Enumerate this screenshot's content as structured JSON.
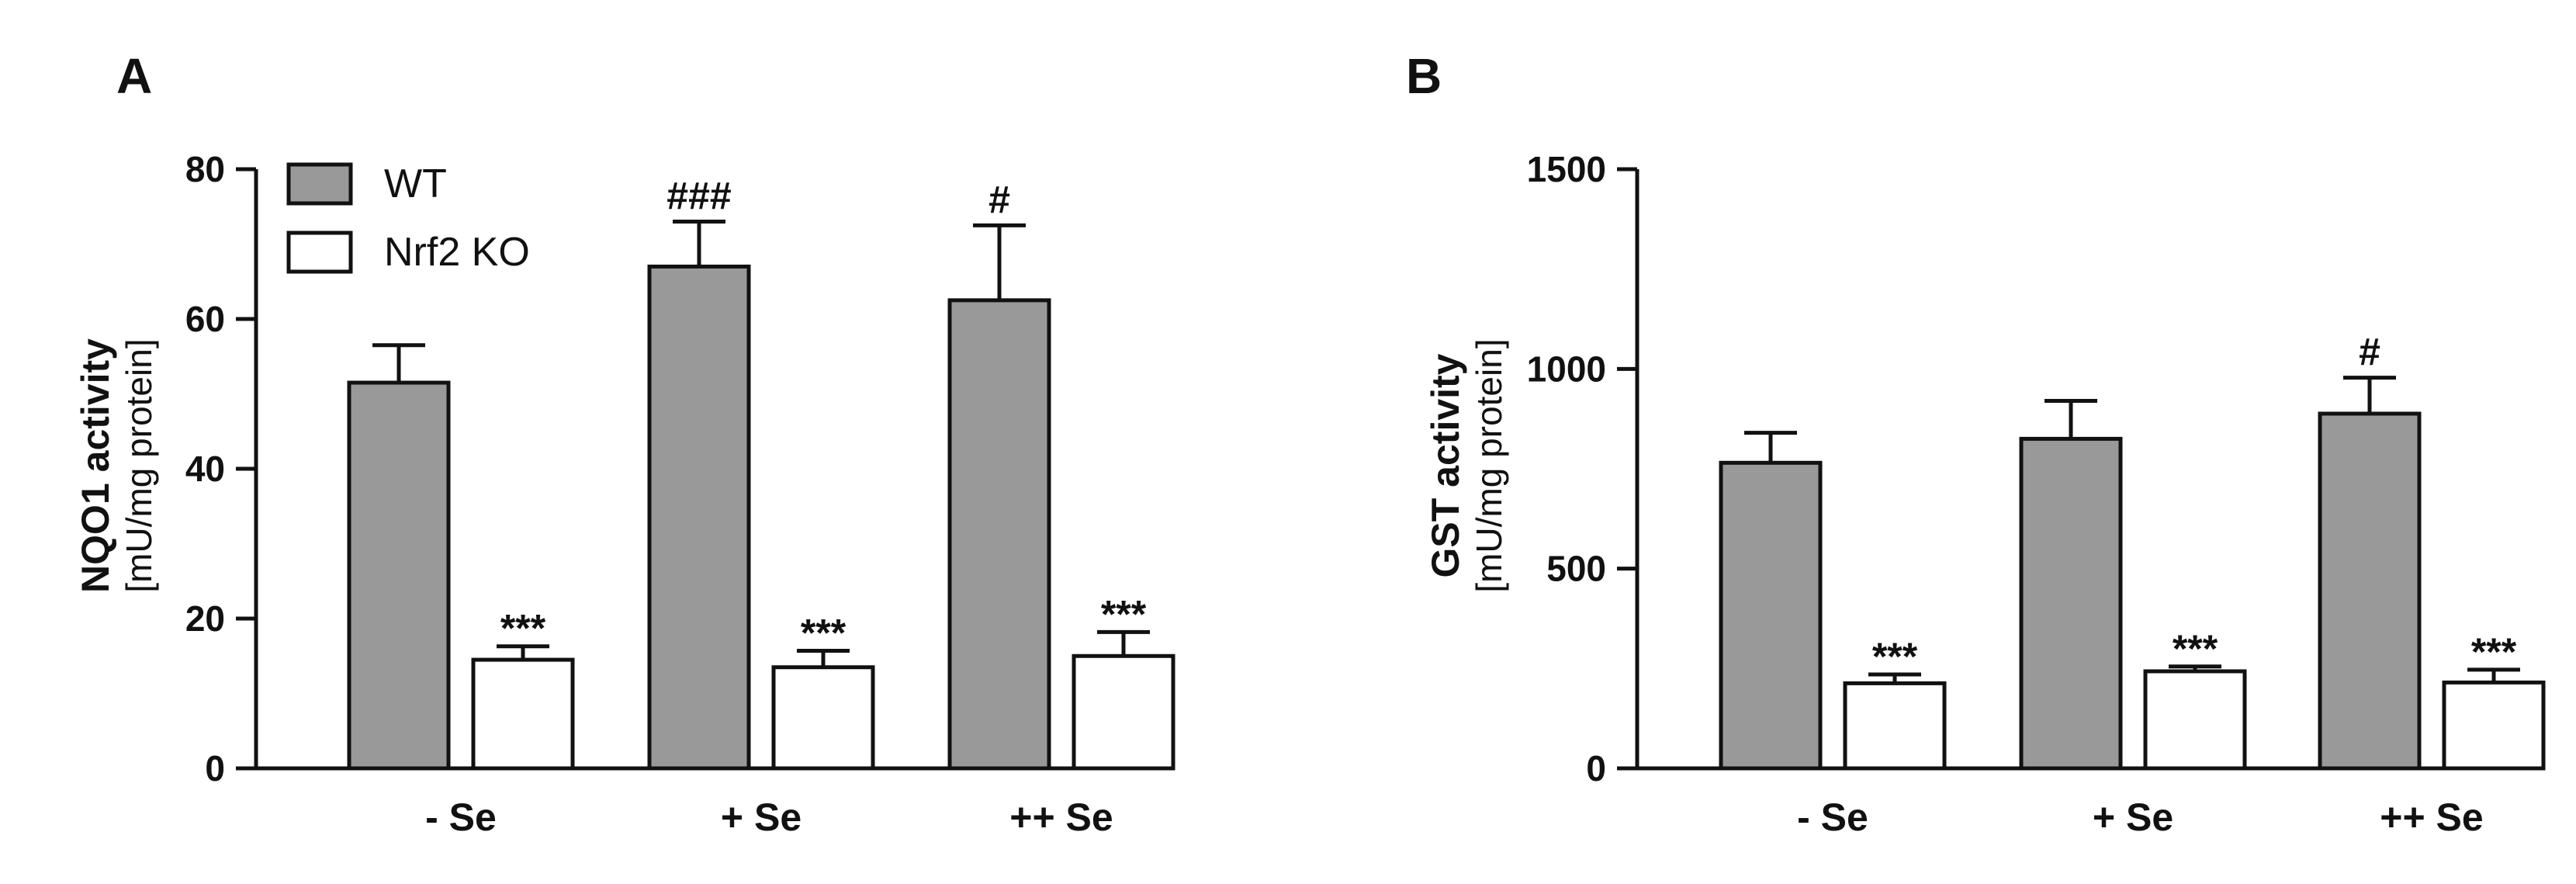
{
  "legend": [
    {
      "name": "WT",
      "color": "#999999"
    },
    {
      "name": "Nrf2 KO",
      "color": "#ffffff"
    }
  ],
  "chart_data": [
    {
      "panel": "A",
      "type": "bar",
      "ylabel": "NQO1 activity",
      "ylabel_sub": "[mU/mg protein]",
      "categories": [
        "- Se",
        "+ Se",
        "++ Se"
      ],
      "ylim": [
        0,
        80
      ],
      "yticks": [
        0,
        20,
        40,
        60,
        80
      ],
      "legend_position": "top-left",
      "series": [
        {
          "name": "WT",
          "values": [
            51.5,
            67,
            62.5
          ],
          "errors": [
            5,
            6,
            10
          ],
          "annotations": [
            "",
            "###",
            "#"
          ]
        },
        {
          "name": "Nrf2 KO",
          "values": [
            14.5,
            13.5,
            15
          ],
          "errors": [
            1.8,
            2.2,
            3.2
          ],
          "annotations": [
            "***",
            "***",
            "***"
          ]
        }
      ]
    },
    {
      "panel": "B",
      "type": "bar",
      "ylabel": "GST activity",
      "ylabel_sub": "[mU/mg protein]",
      "categories": [
        "- Se",
        "+ Se",
        "++ Se"
      ],
      "ylim": [
        0,
        1500
      ],
      "yticks": [
        0,
        500,
        1000,
        1500
      ],
      "series": [
        {
          "name": "WT",
          "values": [
            765,
            825,
            888
          ],
          "errors": [
            75,
            95,
            90
          ],
          "annotations": [
            "",
            "",
            "#"
          ]
        },
        {
          "name": "Nrf2 KO",
          "values": [
            213,
            243,
            215
          ],
          "errors": [
            22,
            12,
            32
          ],
          "annotations": [
            "***",
            "***",
            "***"
          ]
        }
      ]
    }
  ]
}
